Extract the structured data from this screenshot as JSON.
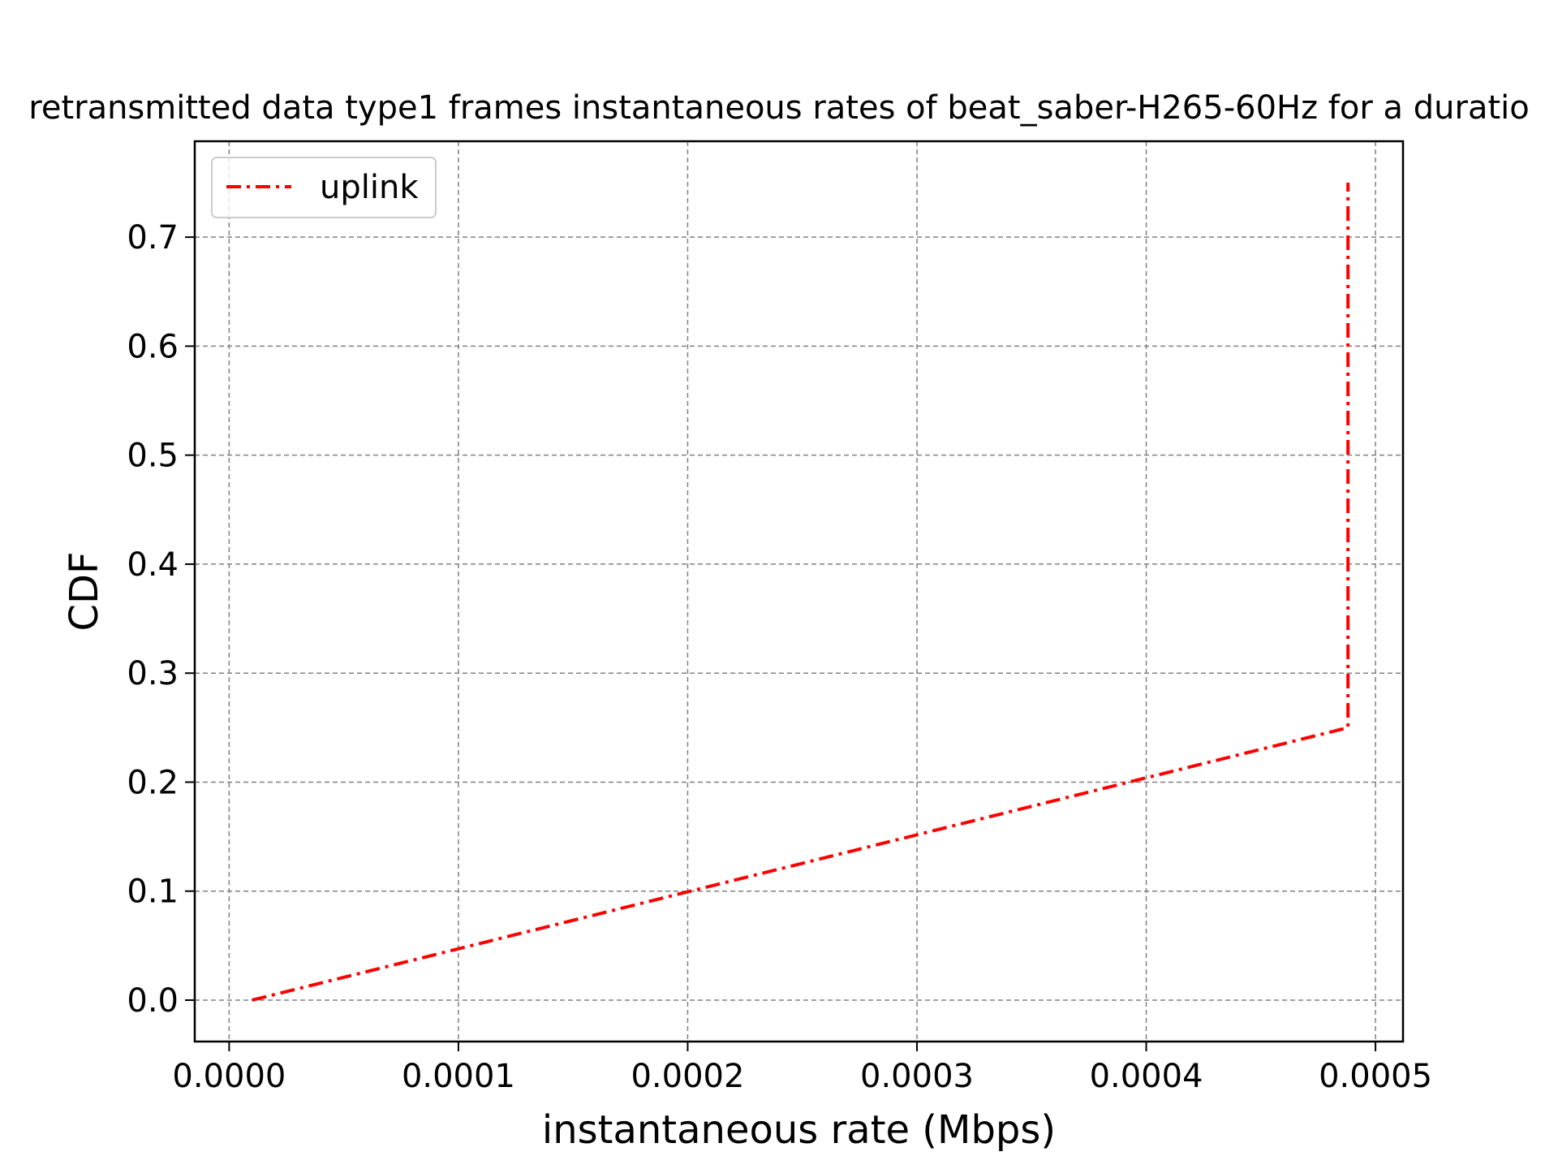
{
  "chart_data": {
    "type": "line",
    "title": "retransmitted data type1 frames instantaneous rates of beat_saber-H265-60Hz for a duratio",
    "xlabel": "instantaneous rate (Mbps)",
    "ylabel": "CDF",
    "xlim": [
      -1.5e-05,
      0.000512
    ],
    "ylim": [
      -0.038,
      0.788
    ],
    "xticks": [
      0.0,
      0.0001,
      0.0002,
      0.0003,
      0.0004,
      0.0005
    ],
    "xtick_labels": [
      "0.0000",
      "0.0001",
      "0.0002",
      "0.0003",
      "0.0004",
      "0.0005"
    ],
    "yticks": [
      0.0,
      0.1,
      0.2,
      0.3,
      0.4,
      0.5,
      0.6,
      0.7
    ],
    "ytick_labels": [
      "0.0",
      "0.1",
      "0.2",
      "0.3",
      "0.4",
      "0.5",
      "0.6",
      "0.7"
    ],
    "grid": true,
    "legend_position": "top-left",
    "series": [
      {
        "name": "uplink",
        "color": "#ff0000",
        "line_style": "dash-dot",
        "x": [
          1e-05,
          0.000488,
          0.000488
        ],
        "y": [
          0.0,
          0.25,
          0.75
        ]
      }
    ]
  }
}
